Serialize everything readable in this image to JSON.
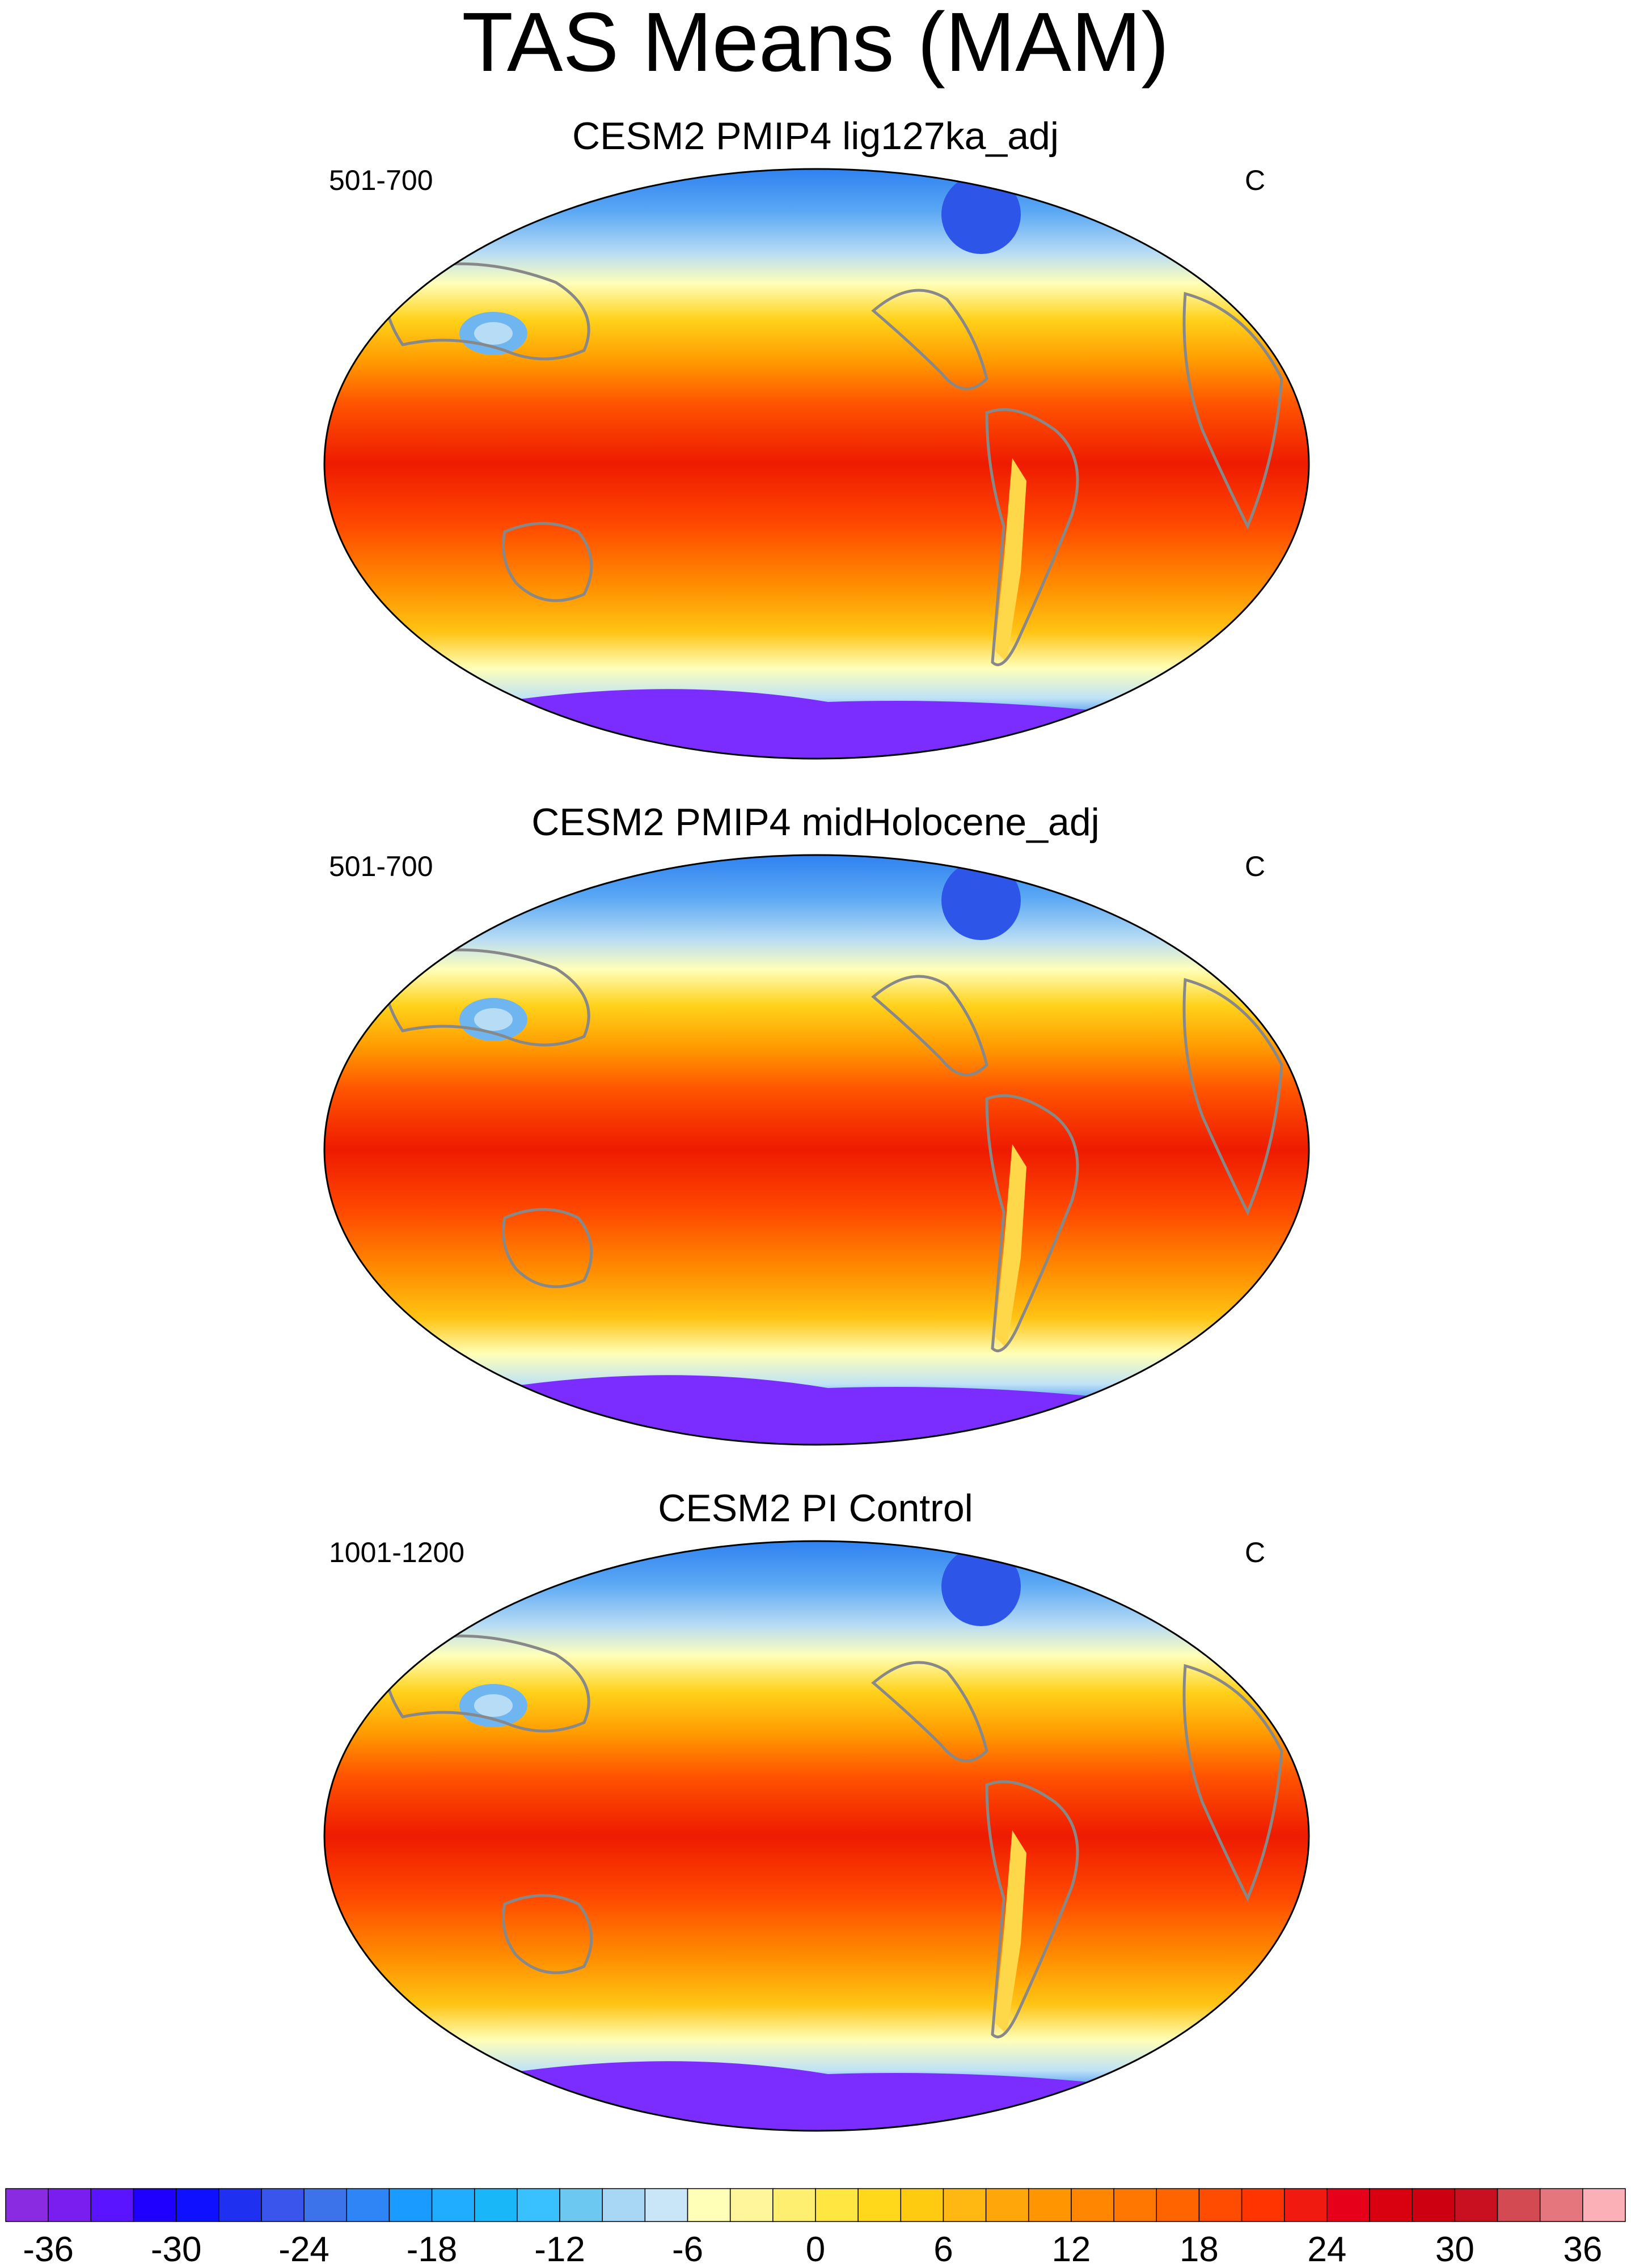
{
  "figure": {
    "title": "TAS Means (MAM)"
  },
  "panels": [
    {
      "title": "CESM2 PMIP4 lig127ka_adj",
      "period": "501-700",
      "units": "C"
    },
    {
      "title": "CESM2 PMIP4 midHolocene_adj",
      "period": "501-700",
      "units": "C"
    },
    {
      "title": "CESM2 PI Control",
      "period": "1001-1200",
      "units": "C"
    }
  ],
  "colorbar": {
    "tick_labels": [
      "-36",
      "-30",
      "-24",
      "-18",
      "-12",
      "-6",
      "0",
      "6",
      "12",
      "18",
      "24",
      "30",
      "36"
    ],
    "colors": [
      "#8a2be2",
      "#7a1ef0",
      "#5a14ff",
      "#1f00ff",
      "#0f10ff",
      "#2030f0",
      "#3a55ec",
      "#3c72ea",
      "#2f85f5",
      "#1a9bff",
      "#20acff",
      "#19b6f8",
      "#38c0ff",
      "#6cc8f0",
      "#a8d6f5",
      "#c8e6f8",
      "#ffffb8",
      "#fff59a",
      "#ffef70",
      "#ffe640",
      "#ffd81c",
      "#ffcb10",
      "#ffb812",
      "#ffa70a",
      "#ff9500",
      "#ff8600",
      "#ff7600",
      "#ff6400",
      "#ff4c00",
      "#ff3400",
      "#f01a10",
      "#e6001a",
      "#d90010",
      "#cc0010",
      "#c81020",
      "#d44a52",
      "#e6767e",
      "#fbb0b8"
    ]
  },
  "legend_colors": {
    "cold": "#7b2cff",
    "cool": "#2a8bff",
    "neutral": "#ffffb8",
    "warm": "#ffa000",
    "hot": "#ee1b00",
    "coast": "#888888"
  }
}
